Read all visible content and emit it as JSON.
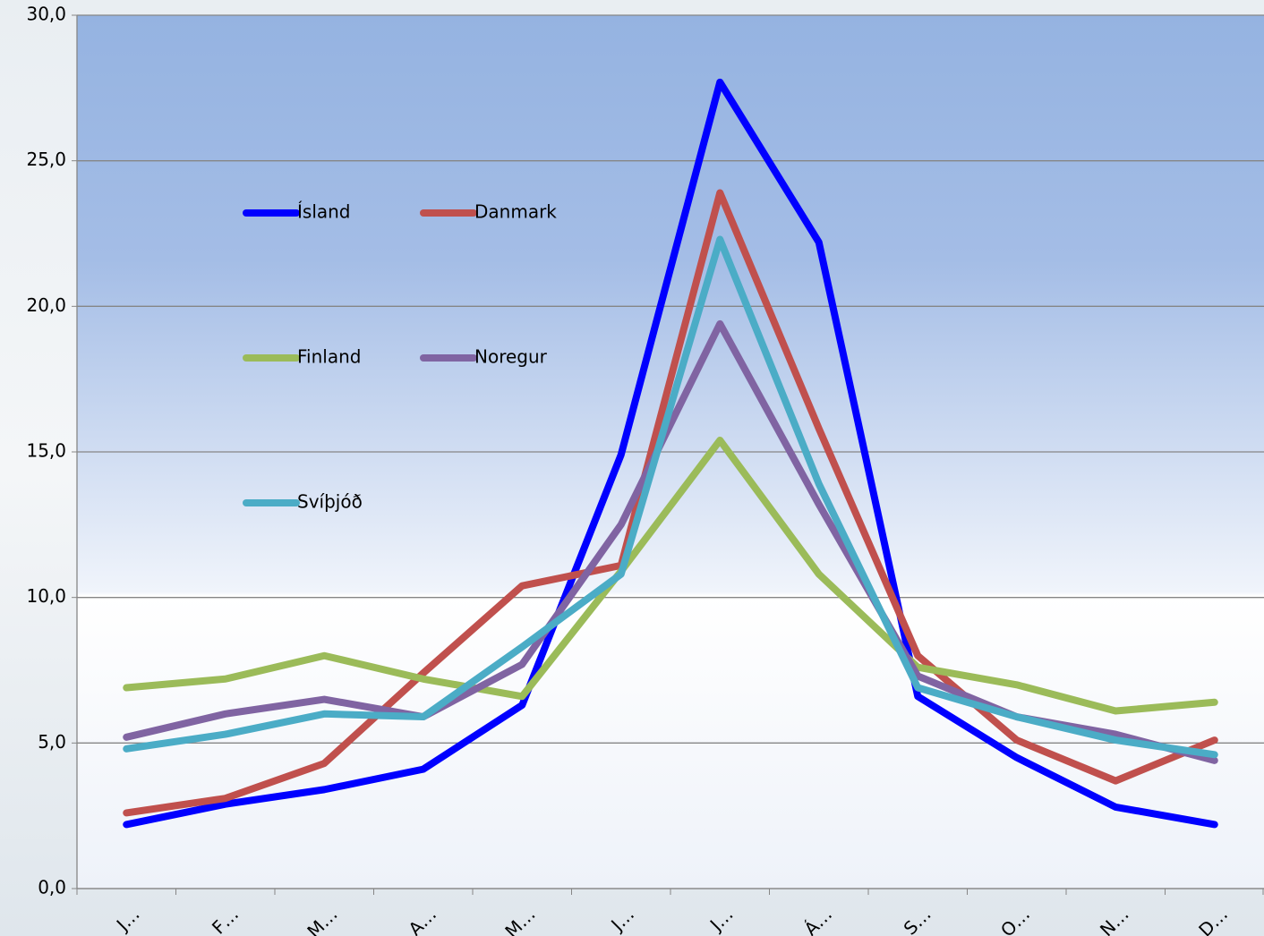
{
  "chart_data": {
    "type": "line",
    "categories": [
      "J…",
      "F…",
      "M…",
      "A…",
      "M…",
      "J…",
      "J…",
      "Á…",
      "S…",
      "O…",
      "N…",
      "D…"
    ],
    "series": [
      {
        "name": "Ísland",
        "color": "#0000ff",
        "values": [
          2.2,
          2.9,
          3.4,
          4.1,
          6.3,
          14.9,
          27.7,
          22.2,
          6.6,
          4.5,
          2.8,
          2.2
        ]
      },
      {
        "name": "Danmark",
        "color": "#c0504d",
        "values": [
          2.6,
          3.1,
          4.3,
          7.4,
          10.4,
          11.1,
          23.9,
          15.8,
          8.0,
          5.1,
          3.7,
          5.1
        ]
      },
      {
        "name": "Finland",
        "color": "#9bbb59",
        "values": [
          6.9,
          7.2,
          8.0,
          7.2,
          6.6,
          10.9,
          15.4,
          10.8,
          7.6,
          7.0,
          6.1,
          6.4
        ]
      },
      {
        "name": "Noregur",
        "color": "#8064a2",
        "values": [
          5.2,
          6.0,
          6.5,
          5.9,
          7.7,
          12.5,
          19.4,
          13.2,
          7.3,
          5.9,
          5.3,
          4.4
        ]
      },
      {
        "name": "Svíþjóð",
        "color": "#4bacc6",
        "values": [
          4.8,
          5.3,
          6.0,
          5.9,
          8.3,
          10.8,
          22.3,
          13.9,
          6.9,
          5.9,
          5.1,
          4.6
        ]
      }
    ],
    "ylim": [
      0,
      30
    ],
    "yticks": [
      {
        "value": 0,
        "label": "0,0"
      },
      {
        "value": 5,
        "label": "5,0"
      },
      {
        "value": 10,
        "label": "10,0"
      },
      {
        "value": 15,
        "label": "15,0"
      },
      {
        "value": 20,
        "label": "20,0"
      },
      {
        "value": 25,
        "label": "25,0"
      },
      {
        "value": 30,
        "label": "30,0"
      }
    ],
    "grid": true
  }
}
